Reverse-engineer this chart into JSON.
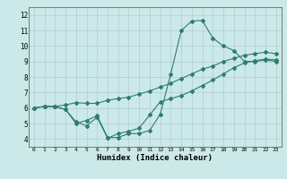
{
  "xlabel": "Humidex (Indice chaleur)",
  "background_color": "#cce9e9",
  "grid_color": "#b0cccc",
  "line_color": "#2e7d6e",
  "xlim": [
    -0.5,
    23.5
  ],
  "ylim": [
    3.5,
    12.5
  ],
  "xticks": [
    0,
    1,
    2,
    3,
    4,
    5,
    6,
    7,
    8,
    9,
    10,
    11,
    12,
    13,
    14,
    15,
    16,
    17,
    18,
    19,
    20,
    21,
    22,
    23
  ],
  "yticks": [
    4,
    5,
    6,
    7,
    8,
    9,
    10,
    11,
    12
  ],
  "lines": [
    {
      "x": [
        0,
        1,
        2,
        3,
        4,
        5,
        6,
        7,
        8,
        9,
        10,
        11,
        12,
        13,
        14,
        15,
        16,
        17,
        18,
        19,
        20,
        21,
        22,
        23
      ],
      "y": [
        6.0,
        6.1,
        6.1,
        5.9,
        5.0,
        5.2,
        5.5,
        4.1,
        4.1,
        4.35,
        4.35,
        4.55,
        5.6,
        8.2,
        11.0,
        11.6,
        11.65,
        10.5,
        10.0,
        9.7,
        9.0,
        9.0,
        9.1,
        9.0
      ]
    },
    {
      "x": [
        0,
        1,
        2,
        3,
        4,
        5,
        6,
        7,
        8,
        9,
        10,
        11,
        12,
        13,
        14,
        15,
        16,
        17,
        18,
        19,
        20,
        21,
        22,
        23
      ],
      "y": [
        6.0,
        6.1,
        6.1,
        5.9,
        5.1,
        4.85,
        5.4,
        4.05,
        4.35,
        4.5,
        4.7,
        5.55,
        6.4,
        6.6,
        6.8,
        7.1,
        7.45,
        7.8,
        8.2,
        8.6,
        8.9,
        9.05,
        9.15,
        9.1
      ]
    },
    {
      "x": [
        0,
        1,
        2,
        3,
        4,
        5,
        6,
        7,
        8,
        9,
        10,
        11,
        12,
        13,
        14,
        15,
        16,
        17,
        18,
        19,
        20,
        21,
        22,
        23
      ],
      "y": [
        6.0,
        6.1,
        6.1,
        6.2,
        6.35,
        6.3,
        6.3,
        6.5,
        6.6,
        6.7,
        6.9,
        7.1,
        7.35,
        7.6,
        7.9,
        8.2,
        8.5,
        8.7,
        9.0,
        9.2,
        9.4,
        9.5,
        9.6,
        9.5
      ]
    }
  ]
}
